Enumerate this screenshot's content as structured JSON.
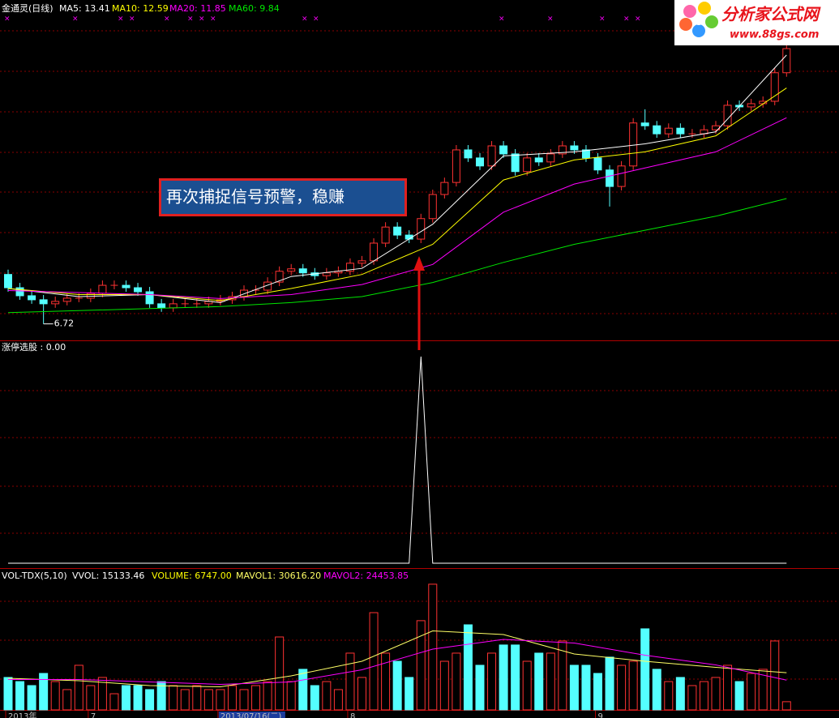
{
  "logo": {
    "name": "分析家公式网",
    "url": "www.88gs.com"
  },
  "chart_data": [
    {
      "type": "candlestick",
      "title": "金通灵(日线)",
      "annotation": "再次捕捉信号预警，稳赚",
      "up_color": "#ff3232",
      "down_color": "#54ffff",
      "ylim": [
        6.31,
        14.78
      ],
      "open": [
        7.95,
        7.62,
        7.42,
        7.32,
        7.22,
        7.28,
        7.36,
        7.36,
        7.48,
        7.68,
        7.68,
        7.62,
        7.52,
        7.22,
        7.12,
        7.22,
        7.22,
        7.22,
        7.28,
        7.32,
        7.4,
        7.56,
        7.56,
        7.76,
        8.03,
        8.09,
        7.99,
        7.92,
        7.99,
        8.03,
        8.23,
        8.29,
        8.73,
        9.13,
        8.93,
        8.83,
        9.34,
        9.94,
        10.24,
        11.05,
        10.85,
        10.65,
        11.15,
        10.95,
        10.51,
        10.85,
        10.75,
        10.95,
        11.15,
        11.05,
        10.85,
        10.55,
        10.14,
        10.65,
        11.72,
        11.65,
        11.45,
        11.59,
        11.45,
        11.45,
        11.55,
        11.65,
        12.16,
        12.12,
        12.2,
        12.26,
        12.97
      ],
      "close": [
        7.62,
        7.42,
        7.32,
        7.22,
        7.28,
        7.36,
        7.36,
        7.48,
        7.68,
        7.68,
        7.62,
        7.52,
        7.22,
        7.12,
        7.22,
        7.22,
        7.22,
        7.28,
        7.32,
        7.4,
        7.56,
        7.56,
        7.76,
        8.03,
        8.09,
        7.99,
        7.92,
        7.99,
        8.03,
        8.23,
        8.29,
        8.73,
        9.13,
        8.93,
        8.83,
        9.34,
        9.94,
        10.24,
        11.05,
        10.85,
        10.65,
        11.15,
        10.95,
        10.51,
        10.85,
        10.75,
        10.95,
        11.15,
        11.05,
        10.85,
        10.55,
        10.14,
        10.65,
        11.72,
        11.65,
        11.45,
        11.59,
        11.45,
        11.45,
        11.55,
        11.65,
        12.16,
        12.12,
        12.2,
        12.26,
        12.97,
        13.57
      ],
      "high": [
        8.07,
        7.74,
        7.54,
        7.44,
        7.4,
        7.48,
        7.48,
        7.6,
        7.8,
        7.8,
        7.8,
        7.74,
        7.64,
        7.34,
        7.34,
        7.34,
        7.34,
        7.4,
        7.44,
        7.52,
        7.68,
        7.68,
        7.88,
        8.15,
        8.21,
        8.21,
        8.11,
        8.11,
        8.15,
        8.35,
        8.41,
        8.85,
        9.25,
        9.25,
        9.05,
        9.46,
        10.06,
        10.36,
        11.17,
        11.17,
        10.97,
        11.27,
        11.27,
        11.07,
        10.97,
        10.97,
        11.07,
        11.27,
        11.27,
        11.17,
        10.97,
        10.67,
        10.77,
        11.84,
        12.06,
        11.77,
        11.71,
        11.71,
        11.57,
        11.67,
        11.77,
        12.28,
        12.28,
        12.32,
        12.38,
        13.09,
        13.75
      ],
      "low": [
        7.52,
        7.32,
        7.22,
        6.72,
        7.12,
        7.18,
        7.26,
        7.26,
        7.38,
        7.58,
        7.52,
        7.42,
        7.12,
        7.02,
        7.02,
        7.12,
        7.12,
        7.12,
        7.18,
        7.22,
        7.3,
        7.46,
        7.46,
        7.66,
        7.93,
        7.89,
        7.82,
        7.82,
        7.89,
        7.93,
        8.13,
        8.19,
        8.63,
        8.83,
        8.73,
        8.73,
        9.24,
        9.84,
        10.14,
        10.75,
        10.55,
        10.55,
        10.85,
        10.41,
        10.41,
        10.65,
        10.65,
        10.85,
        10.95,
        10.75,
        10.45,
        9.64,
        10.04,
        10.55,
        11.55,
        11.35,
        11.35,
        11.35,
        11.35,
        11.35,
        11.45,
        11.55,
        12.02,
        12.02,
        12.1,
        12.16,
        12.87
      ],
      "series": [
        {
          "name": "MA5: 13.41",
          "color": "#ffffff",
          "x": [
            0,
            6,
            12,
            18,
            24,
            30,
            36,
            42,
            48,
            54,
            60,
            66
          ],
          "values": [
            7.6,
            7.4,
            7.45,
            7.25,
            7.9,
            8.1,
            9.2,
            10.9,
            11.0,
            11.2,
            11.5,
            13.41
          ]
        },
        {
          "name": "MA10: 12.59",
          "color": "#ffff00",
          "x": [
            0,
            6,
            12,
            18,
            24,
            30,
            36,
            42,
            48,
            54,
            60,
            66
          ],
          "values": [
            7.6,
            7.45,
            7.45,
            7.3,
            7.6,
            7.95,
            8.7,
            10.3,
            10.8,
            11.0,
            11.4,
            12.59
          ]
        },
        {
          "name": "MA20: 11.85",
          "color": "#ff00ff",
          "x": [
            0,
            6,
            12,
            18,
            24,
            30,
            36,
            42,
            48,
            54,
            60,
            66
          ],
          "values": [
            7.55,
            7.5,
            7.45,
            7.35,
            7.45,
            7.7,
            8.2,
            9.5,
            10.2,
            10.6,
            11.0,
            11.85
          ]
        },
        {
          "name": "MA60: 9.84",
          "color": "#00e600",
          "x": [
            0,
            6,
            12,
            18,
            24,
            30,
            36,
            42,
            48,
            54,
            60,
            66
          ],
          "values": [
            7.0,
            7.05,
            7.1,
            7.15,
            7.25,
            7.4,
            7.75,
            8.25,
            8.7,
            9.05,
            9.4,
            9.84
          ]
        }
      ]
    },
    {
      "type": "line",
      "title": "涨停选股 : 0.00",
      "color": "#ffffff",
      "x": [
        0,
        34,
        35,
        36,
        66
      ],
      "values": [
        0,
        0,
        1,
        0,
        0
      ],
      "ylim": [
        0,
        1
      ]
    },
    {
      "type": "bar",
      "title": "VOL-TDX(5,10)",
      "notes": [
        "VVOL: 15133.46",
        "VOLUME: 6747.00"
      ],
      "ylim": [
        0,
        110000
      ],
      "values": [
        26700,
        23300,
        20000,
        30000,
        23300,
        16700,
        36700,
        20000,
        26700,
        13300,
        20000,
        20000,
        16700,
        23300,
        20000,
        16700,
        20000,
        16700,
        16700,
        20000,
        16700,
        20000,
        23300,
        60000,
        23300,
        33400,
        20000,
        23300,
        16700,
        46700,
        26700,
        80000,
        46700,
        40000,
        26700,
        73400,
        103400,
        40000,
        46700,
        70000,
        36700,
        46700,
        53400,
        53400,
        40000,
        46700,
        46700,
        56700,
        36700,
        36700,
        30000,
        43400,
        36700,
        40000,
        66700,
        33400,
        23300,
        26700,
        20000,
        23300,
        26700,
        36700,
        23300,
        30000,
        33400,
        56700,
        6747
      ],
      "series": [
        {
          "name": "MAVOL1: 30616.20",
          "color": "#ffff66",
          "x": [
            0,
            6,
            12,
            18,
            24,
            30,
            36,
            42,
            48,
            54,
            60,
            66
          ],
          "values": [
            26000,
            24000,
            20000,
            19000,
            28000,
            40000,
            65000,
            62000,
            46000,
            40000,
            35000,
            30616.2
          ]
        },
        {
          "name": "MAVOL2: 24453.85",
          "color": "#ff00ff",
          "x": [
            0,
            6,
            12,
            18,
            24,
            30,
            36,
            42,
            48,
            54,
            60,
            66
          ],
          "values": [
            25000,
            25000,
            23000,
            21000,
            23000,
            33000,
            50000,
            58000,
            55000,
            45000,
            37000,
            24453.85
          ]
        }
      ],
      "x_labels": [
        "2013年",
        "7",
        "2013/07/16(二)",
        "8",
        "9"
      ],
      "x_label_index": [
        0,
        7,
        18,
        29,
        50
      ]
    }
  ]
}
